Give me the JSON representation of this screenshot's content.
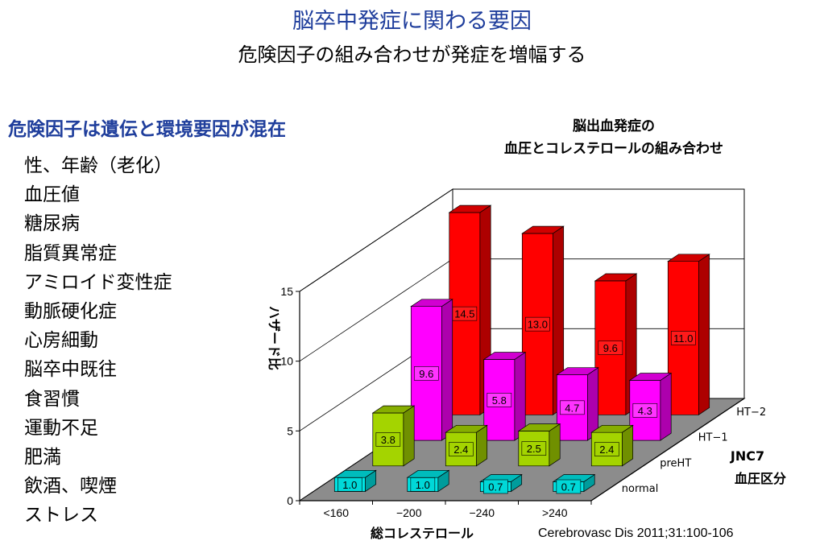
{
  "slide": {
    "title": "脳卒中発症に関わる要因",
    "subtitle": "危険因子の組み合わせが発症を増幅する",
    "section_heading": "危険因子は遺伝と環境要因が混在",
    "risk_factors": [
      "性、年齢（老化）",
      "血圧値",
      "糖尿病",
      "脂質異常症",
      "アミロイド変性症",
      "動脈硬化症",
      "心房細動",
      "脳卒中既往",
      "食習慣",
      "運動不足",
      "肥満",
      "飲酒、喫煙",
      "ストレス"
    ],
    "citation": "Cerebrovasc Dis 2011;31:100-106"
  },
  "chart_data": {
    "type": "bar",
    "title_line1": "脳出血発症の",
    "title_line2": "血圧とコレステロールの組み合わせ",
    "ylabel": "ハザード比",
    "xlabel": "総コレステロール",
    "ylim": [
      0,
      15
    ],
    "y_ticks": [
      "0",
      "5",
      "10",
      "15"
    ],
    "categories": [
      "<160",
      "−200",
      "−240",
      ">240"
    ],
    "depth_axis_title_line1": "JNC7",
    "depth_axis_title_line2": "血圧区分",
    "series": [
      {
        "name": "normal",
        "values": [
          1.0,
          1.0,
          0.7,
          0.7
        ],
        "labels": [
          "1.0",
          "1.0",
          "0.7",
          "0.7"
        ],
        "color": "#00e5e5",
        "label_bg": "#00d8d8"
      },
      {
        "name": "preHT",
        "values": [
          3.8,
          2.4,
          2.5,
          2.4
        ],
        "labels": [
          "3.8",
          "2.4",
          "2.5",
          "2.4"
        ],
        "color": "#a4d400",
        "label_bg": "#a4d400"
      },
      {
        "name": "HT−1",
        "values": [
          9.6,
          5.8,
          4.7,
          4.3
        ],
        "labels": [
          "9.6",
          "5.8",
          "4.7",
          "4.3"
        ],
        "color": "#ff00ff",
        "label_bg": "#ff33ff"
      },
      {
        "name": "HT−2",
        "values": [
          14.5,
          13.0,
          9.6,
          11.0
        ],
        "labels": [
          "14.5",
          "13.0",
          "9.6",
          "11.0"
        ],
        "color": "#ff0000",
        "label_bg": "#ff1a1a"
      }
    ],
    "colors": {
      "floor": "#8c8c8c",
      "wall": "#ffffff"
    }
  }
}
